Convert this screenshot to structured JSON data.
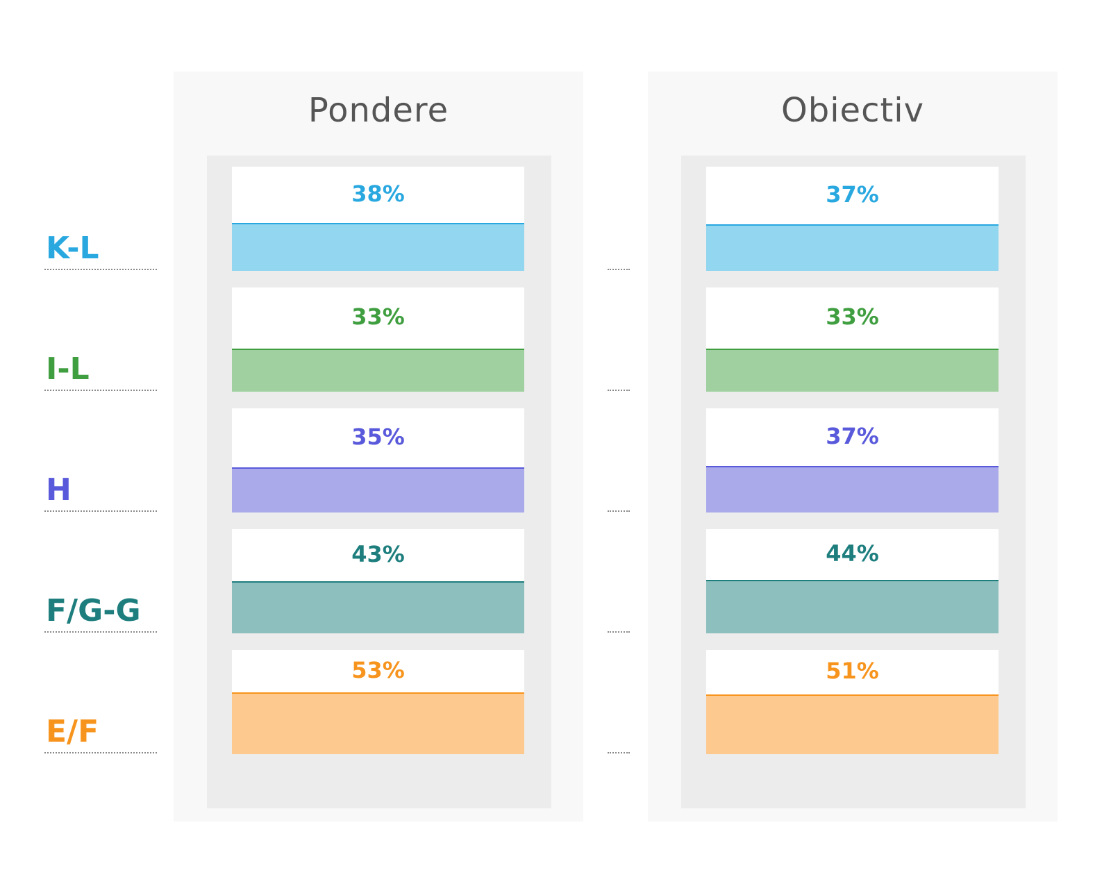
{
  "chart_data": {
    "type": "bar",
    "categories": [
      "K-L",
      "I-L",
      "H",
      "F/G-G",
      "E/F"
    ],
    "category_colors": [
      "#29a8e0",
      "#3f9e3f",
      "#5959db",
      "#1e7e7e",
      "#f7941d"
    ],
    "fill_colors": [
      "#92d6ef",
      "#a0cfa0",
      "#aaaaeb",
      "#8ebfbf",
      "#fdc98e"
    ],
    "value_suffix": "%",
    "ylim": [
      0,
      100
    ],
    "series": [
      {
        "name": "Pondere",
        "values": [
          38,
          33,
          35,
          43,
          53
        ]
      },
      {
        "name": "Obiectiv",
        "values": [
          37,
          33,
          37,
          44,
          51
        ]
      }
    ]
  }
}
